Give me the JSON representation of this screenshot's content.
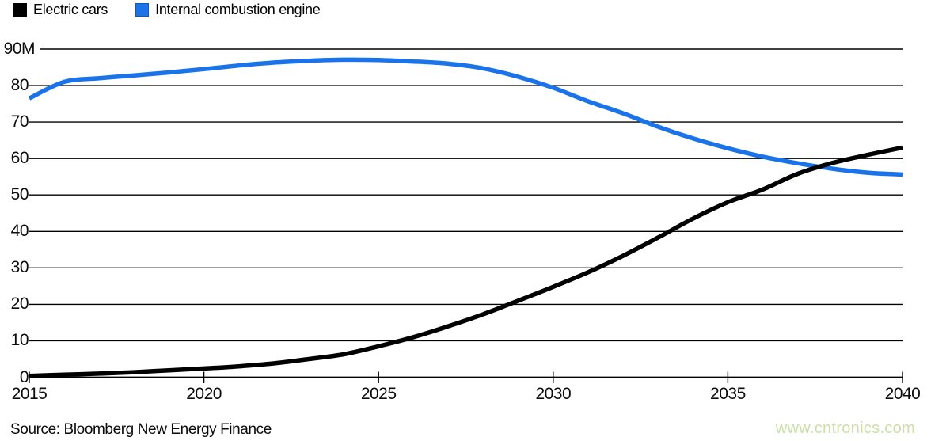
{
  "legend": {
    "items": [
      {
        "id": "electric-cars",
        "label": "Electric cars",
        "color": "#000000",
        "swatch_border": "#000000"
      },
      {
        "id": "internal-combustion-engine",
        "label": "Internal combustion engine",
        "color": "#1a73e8",
        "swatch_border": "#1258b8"
      }
    ]
  },
  "source": {
    "text": "Source: Bloomberg New Energy Finance"
  },
  "watermark": {
    "text": "www.cntronics.com",
    "color": "#cbe0a8"
  },
  "colors": {
    "electric_line": "#000000",
    "ice_line": "#1a73e8",
    "grid": "#000000",
    "background": "#ffffff"
  },
  "chart_data": {
    "type": "line",
    "title": "",
    "xlabel": "",
    "ylabel": "",
    "unit_suffix_on_top_tick": "M",
    "x": [
      2015,
      2016,
      2017,
      2018,
      2019,
      2020,
      2021,
      2022,
      2023,
      2024,
      2025,
      2026,
      2027,
      2028,
      2029,
      2030,
      2031,
      2032,
      2033,
      2034,
      2035,
      2036,
      2037,
      2038,
      2039,
      2040
    ],
    "series": [
      {
        "name": "Electric cars",
        "id": "electric-cars",
        "color": "#000000",
        "values": [
          0.4,
          0.7,
          1.0,
          1.4,
          1.9,
          2.4,
          3.0,
          3.8,
          5.0,
          6.3,
          8.5,
          11.0,
          14.0,
          17.3,
          21.0,
          24.8,
          28.8,
          33.3,
          38.3,
          43.5,
          48.0,
          51.5,
          55.8,
          58.8,
          61.0,
          63.0
        ]
      },
      {
        "name": "Internal combustion engine",
        "id": "internal-combustion-engine",
        "color": "#1a73e8",
        "values": [
          76.5,
          81.0,
          82.0,
          82.8,
          83.6,
          84.5,
          85.5,
          86.3,
          86.8,
          87.1,
          87.0,
          86.6,
          86.0,
          84.7,
          82.4,
          79.4,
          75.7,
          72.4,
          68.7,
          65.5,
          62.8,
          60.5,
          58.7,
          57.2,
          56.1,
          55.6
        ]
      }
    ],
    "xlim": [
      2015,
      2040
    ],
    "ylim": [
      0,
      90
    ],
    "y_ticks": {
      "values": [
        90,
        80,
        70,
        60,
        50,
        40,
        30,
        20,
        10,
        0
      ],
      "labels": [
        "90M",
        "80",
        "70",
        "60",
        "50",
        "40",
        "30",
        "20",
        "10",
        "0"
      ]
    },
    "x_ticks": {
      "values": [
        2015,
        2020,
        2025,
        2030,
        2035,
        2040
      ],
      "labels": [
        "2015",
        "2020",
        "2025",
        "2030",
        "2035",
        "2040"
      ]
    },
    "grid": true,
    "legend_position": "top-left",
    "crossover": {
      "year": 2037.5,
      "value": 57.5
    }
  }
}
